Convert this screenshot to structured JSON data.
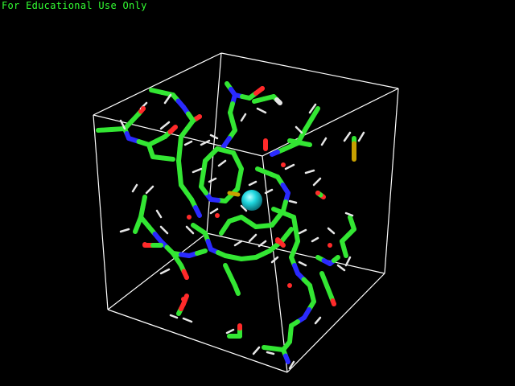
{
  "viewer": {
    "watermark": "For Educational Use Only",
    "background": "#000000",
    "watermark_color": "#33ff33"
  },
  "scene": {
    "unit_cell": {
      "color": "#ffffff"
    },
    "atom_colors": {
      "carbon": "#33e633",
      "nitrogen": "#2a2aff",
      "oxygen": "#ff2a2a",
      "hydrogen": "#e6e6e6",
      "sulfur": "#c8a000",
      "ion": "#20d8e0"
    },
    "central_ion": {
      "element": "ion",
      "color": "#20d8e0"
    }
  }
}
